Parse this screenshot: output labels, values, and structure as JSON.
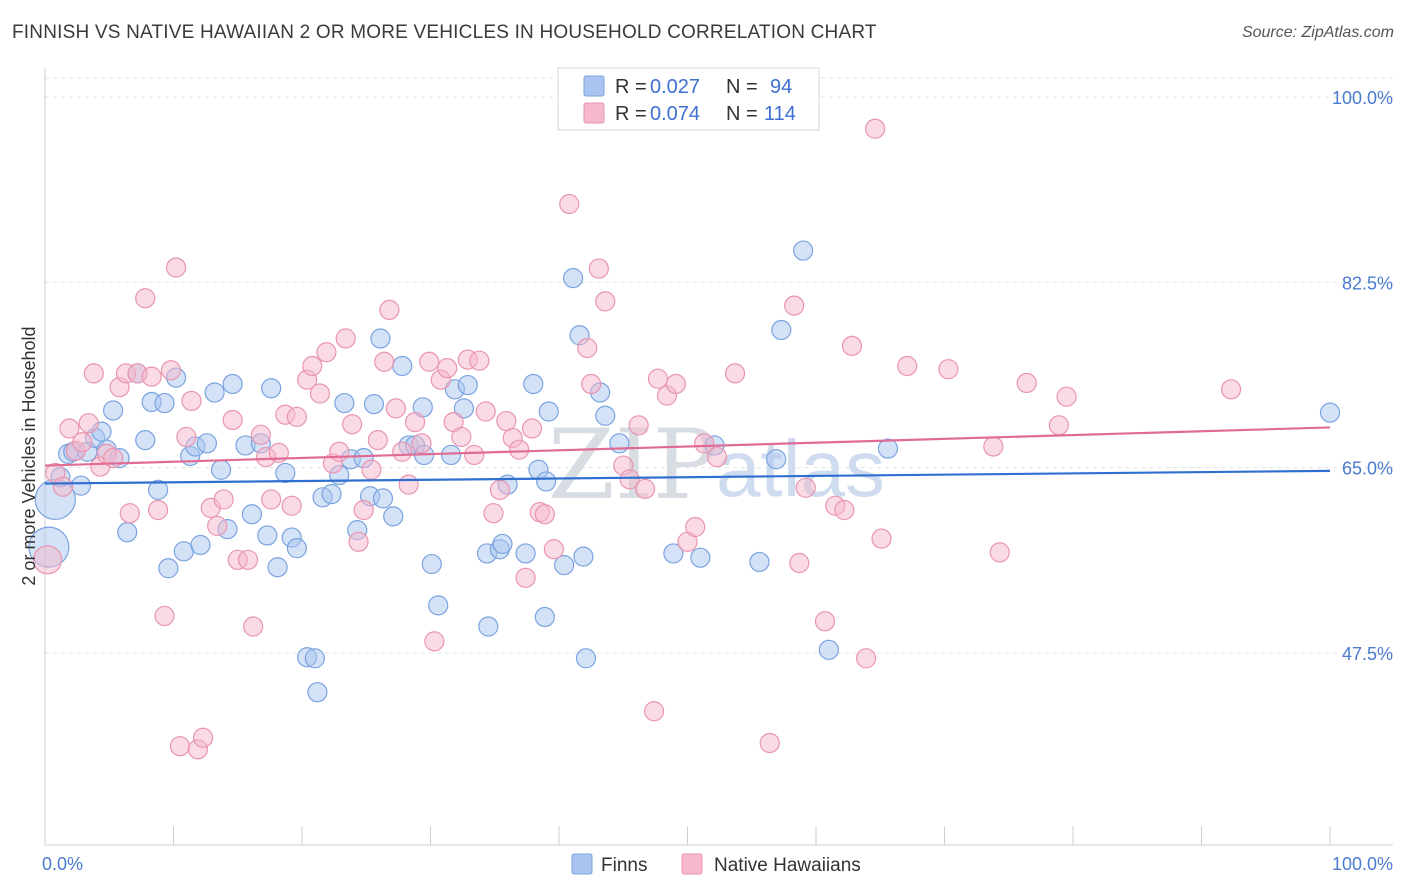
{
  "header": {
    "title": "FINNISH VS NATIVE HAWAIIAN 2 OR MORE VEHICLES IN HOUSEHOLD CORRELATION CHART",
    "source": "Source: ZipAtlas.com"
  },
  "watermark": {
    "zip": "ZIP",
    "atlas": "atlas"
  },
  "legend": {
    "rows": [
      {
        "r_label": "R = ",
        "r_value": "0.027",
        "n_label": "N = ",
        "n_value": "94",
        "color": "#a9c5f0"
      },
      {
        "r_label": "R = ",
        "r_value": "0.074",
        "n_label": "N = ",
        "n_value": "114",
        "color": "#f5b8cc"
      }
    ]
  },
  "chart_data": {
    "type": "scatter",
    "title": "FINNISH VS NATIVE HAWAIIAN 2 OR MORE VEHICLES IN HOUSEHOLD CORRELATION CHART",
    "xlabel": "",
    "ylabel": "2 or more Vehicles in Household",
    "xlim": [
      0,
      100
    ],
    "ylim": [
      35,
      100
    ],
    "x_tick_labels": [
      "0.0%",
      "100.0%"
    ],
    "y_ticks": [
      {
        "value": 100,
        "label": "100.0%"
      },
      {
        "value": 82.5,
        "label": "82.5%"
      },
      {
        "value": 65,
        "label": "65.0%"
      },
      {
        "value": 47.5,
        "label": "47.5%"
      }
    ],
    "grid": true,
    "legend_position": "top-center",
    "series": [
      {
        "name": "Finns",
        "color": "#a9c5f0",
        "stroke": "#7aa3e0",
        "trend": {
          "x": [
            0,
            100
          ],
          "y": [
            63.5,
            64.7
          ],
          "color": "#2f6fd0"
        },
        "points": [
          [
            0.3,
            57.5
          ],
          [
            0.8,
            62.0
          ],
          [
            1.2,
            64.1
          ],
          [
            1.8,
            66.3
          ],
          [
            2.2,
            66.5
          ],
          [
            2.8,
            63.3
          ],
          [
            3.3,
            66.5
          ],
          [
            3.9,
            67.8
          ],
          [
            4.4,
            68.4
          ],
          [
            4.8,
            66.7
          ],
          [
            5.3,
            70.4
          ],
          [
            5.8,
            65.9
          ],
          [
            6.4,
            58.9
          ],
          [
            7.2,
            73.9
          ],
          [
            7.8,
            67.6
          ],
          [
            8.3,
            71.2
          ],
          [
            8.8,
            62.9
          ],
          [
            9.3,
            71.1
          ],
          [
            9.6,
            55.5
          ],
          [
            10.2,
            73.5
          ],
          [
            10.8,
            57.1
          ],
          [
            11.3,
            66.1
          ],
          [
            11.7,
            67.0
          ],
          [
            12.1,
            57.7
          ],
          [
            12.6,
            67.3
          ],
          [
            13.2,
            72.1
          ],
          [
            13.7,
            64.8
          ],
          [
            14.2,
            59.2
          ],
          [
            14.6,
            72.9
          ],
          [
            15.6,
            67.1
          ],
          [
            16.1,
            60.6
          ],
          [
            16.8,
            67.3
          ],
          [
            17.3,
            58.6
          ],
          [
            17.6,
            72.5
          ],
          [
            18.1,
            55.6
          ],
          [
            18.7,
            64.5
          ],
          [
            19.2,
            58.4
          ],
          [
            19.6,
            57.4
          ],
          [
            20.4,
            47.1
          ],
          [
            21.0,
            47.0
          ],
          [
            21.6,
            62.2
          ],
          [
            21.2,
            43.8
          ],
          [
            22.3,
            62.5
          ],
          [
            22.9,
            64.3
          ],
          [
            23.3,
            71.1
          ],
          [
            23.8,
            65.8
          ],
          [
            24.3,
            59.1
          ],
          [
            24.8,
            65.9
          ],
          [
            25.3,
            62.3
          ],
          [
            25.6,
            71.0
          ],
          [
            26.1,
            77.2
          ],
          [
            26.3,
            62.1
          ],
          [
            27.1,
            60.4
          ],
          [
            27.8,
            74.6
          ],
          [
            28.3,
            67.1
          ],
          [
            28.8,
            67.1
          ],
          [
            29.4,
            70.7
          ],
          [
            29.5,
            66.2
          ],
          [
            30.1,
            55.9
          ],
          [
            30.6,
            52.0
          ],
          [
            31.6,
            66.2
          ],
          [
            31.9,
            72.4
          ],
          [
            32.6,
            70.6
          ],
          [
            32.9,
            72.8
          ],
          [
            34.4,
            56.9
          ],
          [
            34.5,
            50.0
          ],
          [
            35.4,
            57.3
          ],
          [
            35.6,
            57.8
          ],
          [
            36.0,
            63.4
          ],
          [
            37.4,
            56.9
          ],
          [
            38.0,
            72.9
          ],
          [
            38.4,
            64.8
          ],
          [
            38.9,
            50.9
          ],
          [
            39.0,
            63.7
          ],
          [
            39.2,
            70.3
          ],
          [
            40.4,
            55.8
          ],
          [
            41.1,
            82.9
          ],
          [
            41.6,
            77.5
          ],
          [
            41.9,
            56.6
          ],
          [
            42.1,
            47.0
          ],
          [
            43.2,
            72.1
          ],
          [
            43.6,
            69.9
          ],
          [
            44.7,
            67.3
          ],
          [
            48.9,
            56.9
          ],
          [
            51.0,
            56.5
          ],
          [
            52.1,
            67.1
          ],
          [
            55.6,
            56.1
          ],
          [
            56.9,
            65.8
          ],
          [
            57.3,
            78.0
          ],
          [
            59.0,
            85.5
          ],
          [
            61.0,
            47.8
          ],
          [
            65.6,
            66.8
          ],
          [
            100.0,
            70.2
          ]
        ]
      },
      {
        "name": "Native Hawaiians",
        "color": "#f5b8cc",
        "stroke": "#e995b0",
        "trend": {
          "x": [
            0,
            100
          ],
          "y": [
            65.2,
            68.8
          ],
          "color": "#e06b94"
        },
        "points": [
          [
            0.2,
            56.3
          ],
          [
            0.8,
            64.5
          ],
          [
            1.4,
            63.2
          ],
          [
            1.9,
            68.7
          ],
          [
            2.4,
            66.6
          ],
          [
            2.9,
            67.4
          ],
          [
            3.4,
            69.2
          ],
          [
            3.8,
            73.9
          ],
          [
            4.3,
            65.1
          ],
          [
            4.8,
            66.3
          ],
          [
            5.3,
            65.9
          ],
          [
            5.8,
            72.6
          ],
          [
            6.3,
            73.9
          ],
          [
            6.6,
            60.7
          ],
          [
            7.2,
            73.9
          ],
          [
            7.8,
            81.0
          ],
          [
            8.3,
            73.6
          ],
          [
            8.8,
            61.0
          ],
          [
            9.3,
            51.0
          ],
          [
            9.8,
            74.2
          ],
          [
            10.2,
            83.9
          ],
          [
            10.5,
            38.7
          ],
          [
            11.0,
            67.9
          ],
          [
            11.4,
            71.3
          ],
          [
            11.9,
            38.4
          ],
          [
            12.3,
            39.5
          ],
          [
            12.9,
            61.2
          ],
          [
            13.4,
            59.5
          ],
          [
            13.9,
            62.0
          ],
          [
            14.6,
            69.5
          ],
          [
            15.0,
            56.3
          ],
          [
            15.8,
            56.3
          ],
          [
            16.2,
            50.0
          ],
          [
            16.8,
            68.1
          ],
          [
            17.2,
            66.0
          ],
          [
            17.6,
            62.0
          ],
          [
            18.2,
            66.4
          ],
          [
            18.7,
            70.0
          ],
          [
            19.2,
            61.4
          ],
          [
            19.6,
            69.8
          ],
          [
            20.4,
            73.3
          ],
          [
            20.8,
            74.6
          ],
          [
            21.4,
            72.0
          ],
          [
            21.9,
            75.9
          ],
          [
            22.4,
            65.4
          ],
          [
            22.9,
            66.5
          ],
          [
            23.4,
            77.2
          ],
          [
            23.9,
            69.1
          ],
          [
            24.4,
            58.0
          ],
          [
            24.8,
            61.0
          ],
          [
            25.4,
            64.8
          ],
          [
            25.9,
            67.6
          ],
          [
            26.4,
            75.0
          ],
          [
            26.8,
            79.9
          ],
          [
            27.3,
            70.6
          ],
          [
            27.8,
            66.5
          ],
          [
            28.3,
            63.4
          ],
          [
            28.8,
            69.3
          ],
          [
            29.3,
            67.3
          ],
          [
            29.9,
            75.0
          ],
          [
            30.3,
            48.6
          ],
          [
            30.8,
            73.3
          ],
          [
            31.3,
            74.4
          ],
          [
            31.8,
            69.3
          ],
          [
            32.4,
            67.9
          ],
          [
            32.9,
            75.2
          ],
          [
            33.4,
            66.2
          ],
          [
            33.8,
            75.1
          ],
          [
            34.3,
            70.3
          ],
          [
            34.9,
            60.7
          ],
          [
            35.4,
            62.9
          ],
          [
            35.9,
            69.4
          ],
          [
            36.4,
            67.8
          ],
          [
            36.9,
            66.7
          ],
          [
            37.4,
            54.6
          ],
          [
            37.9,
            68.7
          ],
          [
            38.5,
            60.8
          ],
          [
            38.9,
            60.6
          ],
          [
            39.6,
            57.3
          ],
          [
            40.8,
            89.9
          ],
          [
            42.5,
            72.9
          ],
          [
            42.2,
            76.3
          ],
          [
            43.1,
            83.8
          ],
          [
            43.6,
            80.7
          ],
          [
            45.0,
            65.2
          ],
          [
            45.5,
            63.9
          ],
          [
            46.2,
            69.0
          ],
          [
            46.7,
            63.0
          ],
          [
            47.4,
            42.0
          ],
          [
            47.7,
            73.4
          ],
          [
            48.4,
            71.8
          ],
          [
            49.1,
            72.9
          ],
          [
            50.0,
            58.0
          ],
          [
            50.6,
            59.4
          ],
          [
            51.3,
            67.3
          ],
          [
            52.3,
            66.0
          ],
          [
            53.7,
            73.9
          ],
          [
            56.4,
            39.0
          ],
          [
            58.3,
            80.3
          ],
          [
            58.7,
            56.0
          ],
          [
            59.2,
            63.1
          ],
          [
            60.7,
            50.5
          ],
          [
            61.5,
            61.4
          ],
          [
            62.2,
            61.0
          ],
          [
            62.8,
            76.5
          ],
          [
            63.9,
            47.0
          ],
          [
            64.6,
            97.0
          ],
          [
            65.1,
            58.3
          ],
          [
            67.1,
            74.6
          ],
          [
            70.3,
            74.3
          ],
          [
            73.8,
            67.0
          ],
          [
            74.3,
            57.0
          ],
          [
            76.4,
            73.0
          ],
          [
            78.9,
            69.0
          ],
          [
            79.5,
            71.7
          ],
          [
            92.3,
            72.4
          ]
        ]
      }
    ]
  },
  "bottom_legend": {
    "items": [
      {
        "label": "Finns",
        "color": "#a9c5f0"
      },
      {
        "label": "Native Hawaiians",
        "color": "#f5b8cc"
      }
    ]
  }
}
